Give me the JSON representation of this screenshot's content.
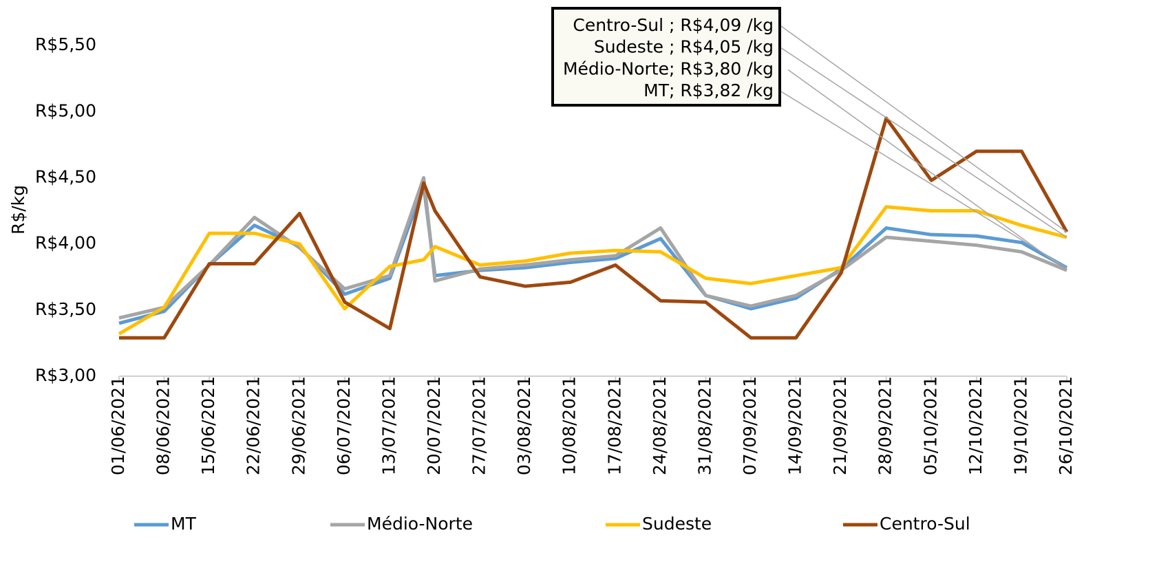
{
  "chart_data": {
    "type": "line",
    "y_label": "R$/kg",
    "categories": [
      "01/06/2021",
      "08/06/2021",
      "15/06/2021",
      "22/06/2021",
      "29/06/2021",
      "06/07/2021",
      "13/07/2021",
      null,
      "20/07/2021",
      "27/07/2021",
      "03/08/2021",
      "10/08/2021",
      "17/08/2021",
      "24/08/2021",
      "31/08/2021",
      "07/09/2021",
      "14/09/2021",
      "21/09/2021",
      "28/09/2021",
      "05/10/2021",
      "12/10/2021",
      "19/10/2021",
      "26/10/2021"
    ],
    "series": [
      {
        "name": "MT",
        "color": "#5b9bd5",
        "values": [
          3.4,
          3.49,
          3.84,
          4.14,
          3.98,
          3.62,
          3.74,
          4.44,
          3.76,
          3.8,
          3.82,
          3.86,
          3.89,
          4.04,
          3.61,
          3.51,
          3.59,
          3.81,
          4.12,
          4.07,
          4.06,
          4.01,
          3.82
        ]
      },
      {
        "name": "Médio-Norte",
        "color": "#a5a5a5",
        "values": [
          3.44,
          3.52,
          3.84,
          4.2,
          3.97,
          3.66,
          3.76,
          4.5,
          3.72,
          3.81,
          3.84,
          3.88,
          3.91,
          4.12,
          3.61,
          3.53,
          3.61,
          3.8,
          4.05,
          4.02,
          3.99,
          3.94,
          3.8
        ]
      },
      {
        "name": "Sudeste",
        "color": "#ffc000",
        "values": [
          3.32,
          3.52,
          4.08,
          4.08,
          4.0,
          3.51,
          3.83,
          3.88,
          3.98,
          3.84,
          3.87,
          3.93,
          3.95,
          3.94,
          3.74,
          3.7,
          3.76,
          3.82,
          4.28,
          4.25,
          4.25,
          4.14,
          4.05
        ]
      },
      {
        "name": "Centro-Sul",
        "color": "#9e480e",
        "values": [
          3.29,
          3.29,
          3.85,
          3.85,
          4.23,
          3.56,
          3.36,
          4.46,
          4.25,
          3.75,
          3.68,
          3.71,
          3.84,
          3.57,
          3.56,
          3.29,
          3.29,
          3.78,
          4.95,
          4.48,
          4.7,
          4.7,
          4.09
        ]
      }
    ],
    "annotations": [
      "Centro-Sul ;  R$4,09 /kg",
      "Sudeste ;  R$4,05 /kg",
      "Médio-Norte;  R$3,80 /kg",
      "MT;  R$3,82 /kg"
    ],
    "ylim": [
      3,
      5.75
    ],
    "yticks": [
      {
        "value": 3,
        "label": "R$3,00"
      },
      {
        "value": 3.5,
        "label": "R$3,50"
      },
      {
        "value": 4,
        "label": "R$4,00"
      },
      {
        "value": 4.5,
        "label": "R$4,50"
      },
      {
        "value": 5,
        "label": "R$5,00"
      },
      {
        "value": 5.5,
        "label": "R$5,50"
      }
    ],
    "grid": false
  }
}
